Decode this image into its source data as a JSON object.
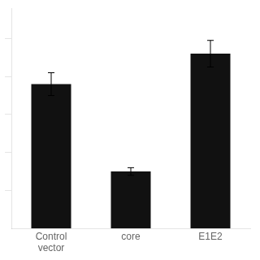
{
  "chart_data": {
    "type": "bar",
    "categories": [
      "Control\nvector",
      "core",
      "E1E2"
    ],
    "values": [
      3.8,
      1.5,
      4.6
    ],
    "errors": [
      0.3,
      0.1,
      0.35
    ],
    "color": "#111111",
    "ylim": [
      0,
      5.8
    ],
    "yticks": [
      1,
      2,
      3,
      4,
      5
    ],
    "grid": false,
    "tick_labels": "x"
  }
}
